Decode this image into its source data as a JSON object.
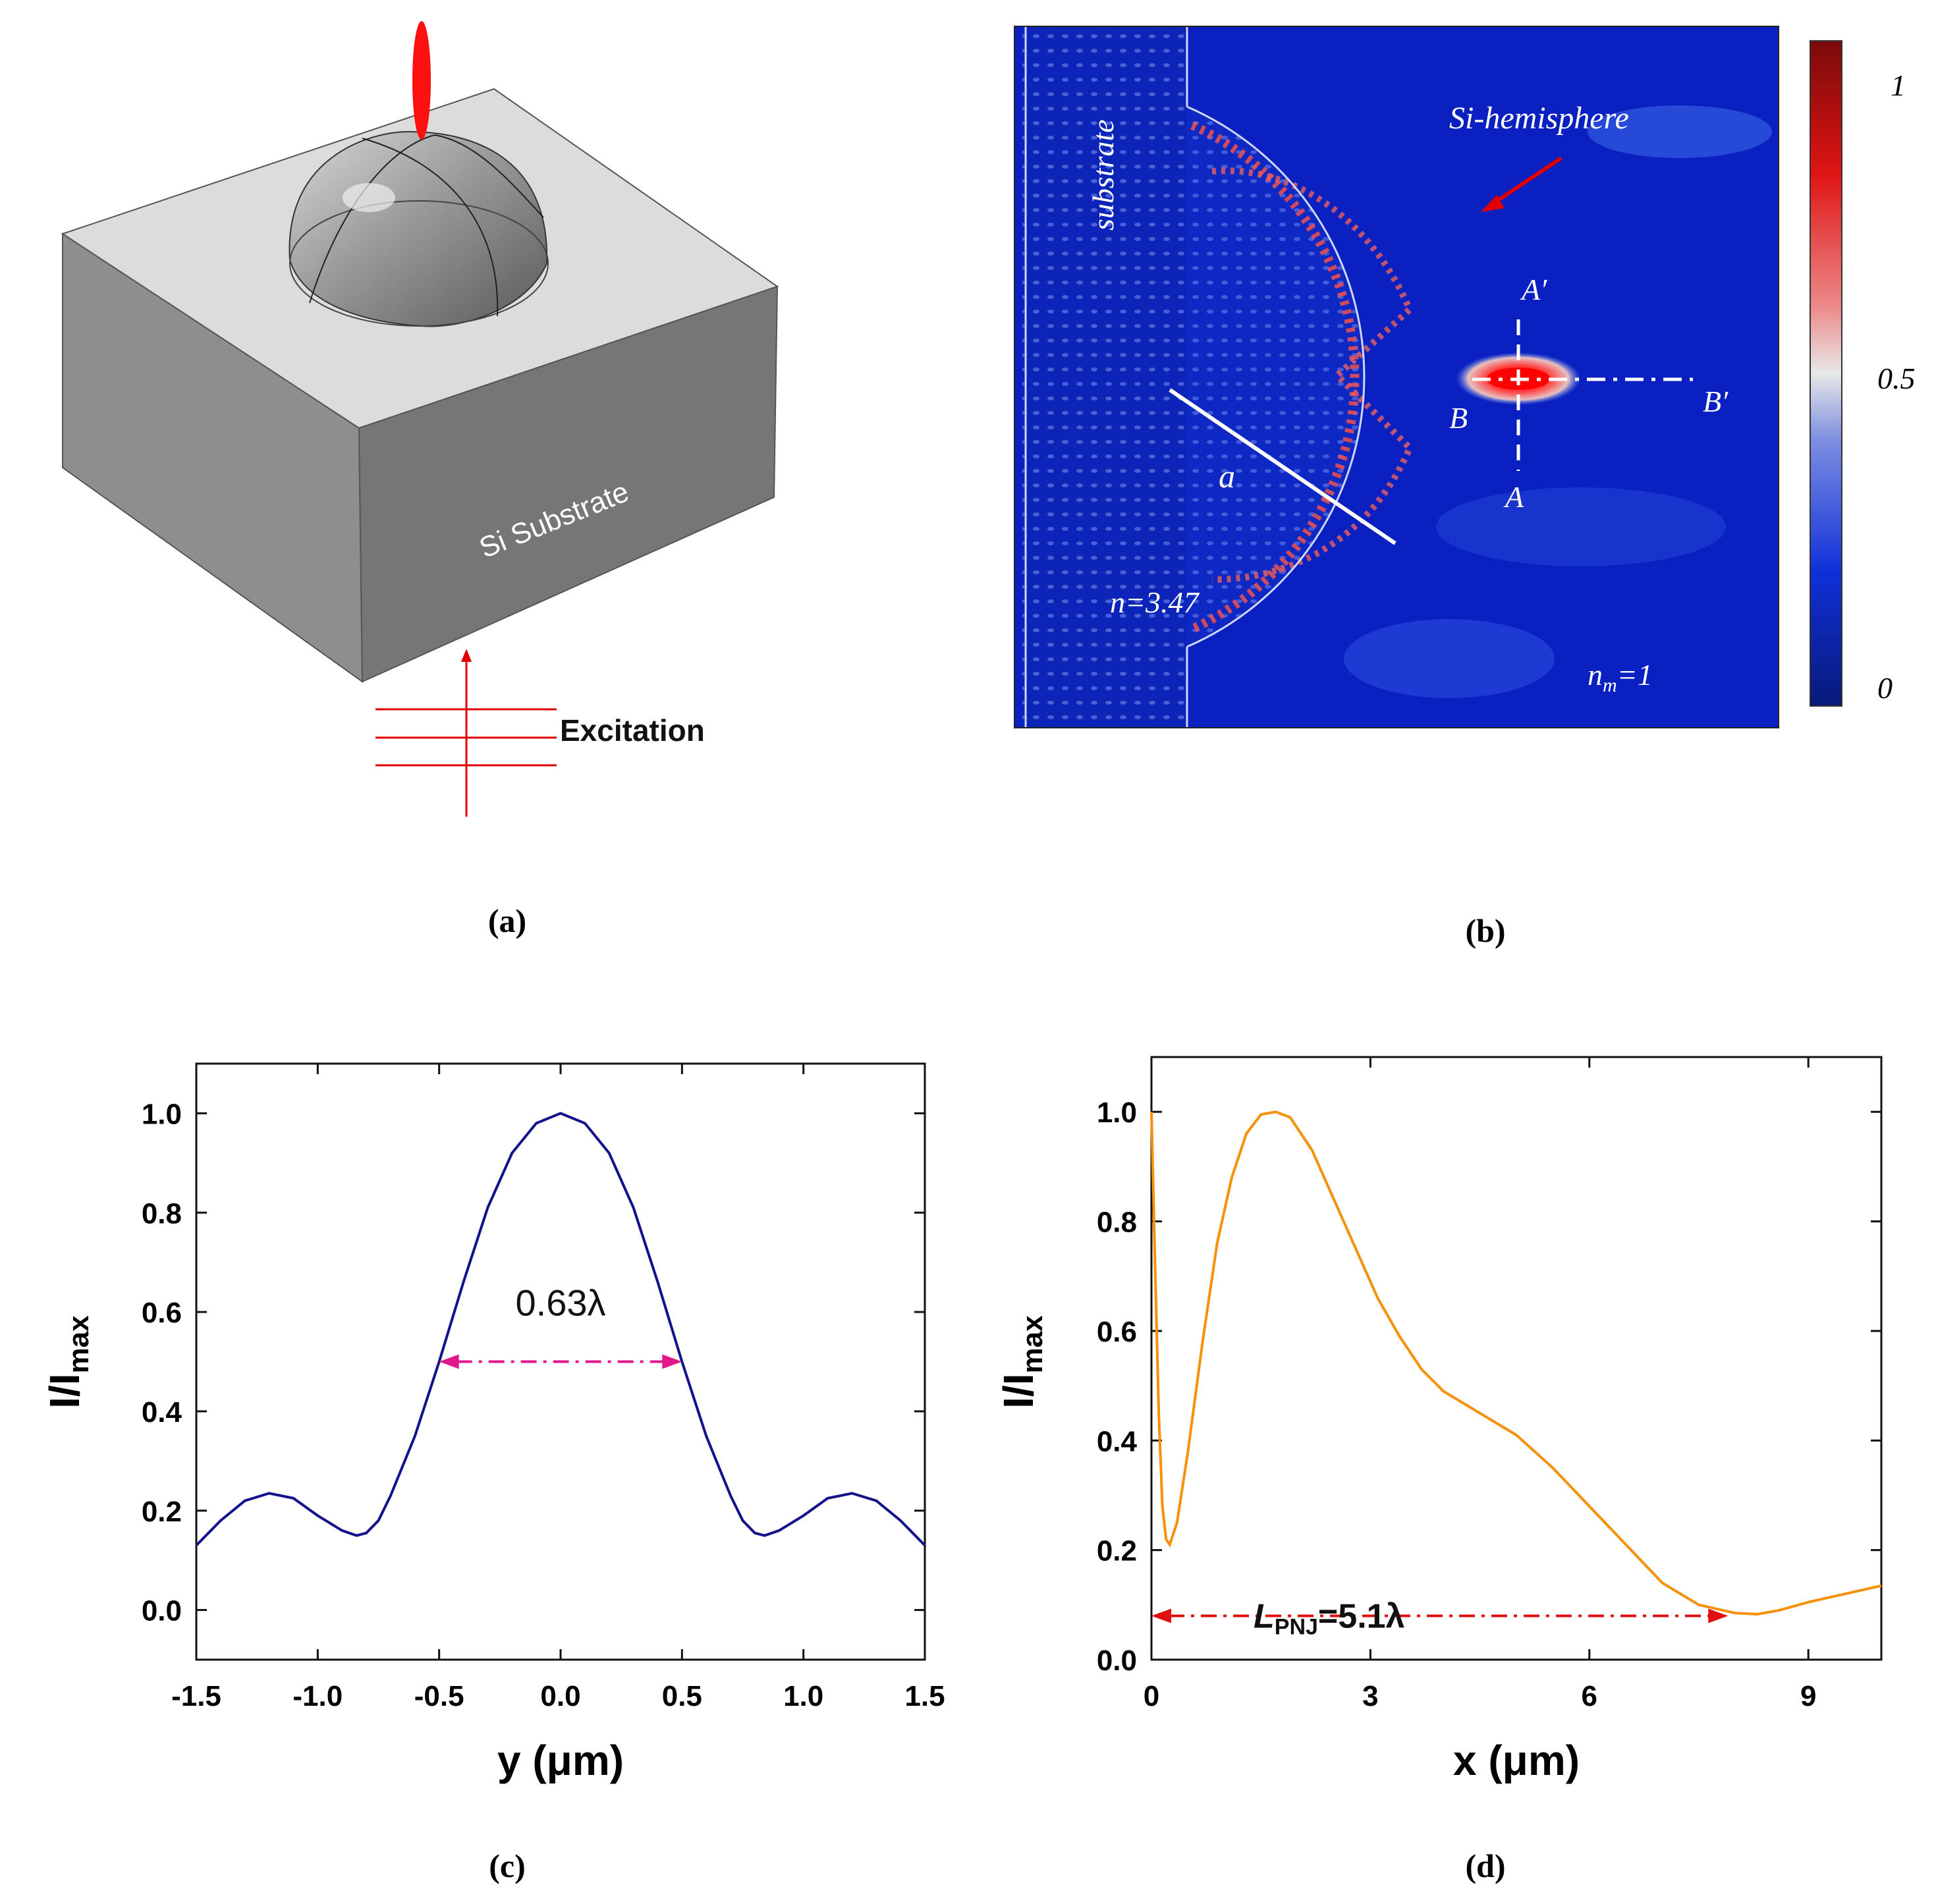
{
  "panel_a": {
    "label": "(a)",
    "substrate_text": "Si Substrate",
    "excitation_text": "Excitation",
    "colors": {
      "top_face": "#dcdcdc",
      "front_face": "#7a7a7a",
      "side_face": "#909090",
      "beam": "#e00000"
    }
  },
  "panel_b": {
    "label": "(b)",
    "substrate_text": "substrate",
    "hemisphere_text": "Si-hemisphere",
    "radius_label": "a",
    "index_label": "n=3.47",
    "medium_label_n": "n",
    "medium_label_sub": "m",
    "medium_label_value": "=1",
    "cut_labels": {
      "A_prime": "A′",
      "A": "A",
      "B": "B",
      "B_prime": "B′"
    },
    "colorbar_ticks": [
      "1",
      "0.5",
      "0"
    ],
    "colors": {
      "field_bg": "#0a1fb8",
      "field_dark": "#00127a",
      "hotspot": "#ff1010",
      "arrow": "#e00000"
    }
  },
  "panel_c": {
    "label": "(c)",
    "fwhm_label": "0.63λ",
    "ylabel_main": "I/I",
    "ylabel_sub": "max",
    "line_color": "#12128c",
    "arrow_color": "#e0188c"
  },
  "panel_d": {
    "label": "(d)",
    "lpnj_label_L": "L",
    "lpnj_label_sub": "PNJ",
    "lpnj_label_value": "=5.1λ",
    "ylabel_main": "I/I",
    "ylabel_sub": "max",
    "line_color": "#f7900a",
    "arrow_color": "#e01010"
  },
  "chart_data": [
    {
      "type": "line",
      "title": "",
      "xlabel": "y (μm)",
      "ylabel": "I/Imax",
      "xlim": [
        -1.5,
        1.5
      ],
      "ylim": [
        -0.1,
        1.1
      ],
      "xticks": [
        "-1.5",
        "-1.0",
        "-0.5",
        "0.0",
        "0.5",
        "1.0",
        "1.5"
      ],
      "yticks": [
        "0.0",
        "0.2",
        "0.4",
        "0.6",
        "0.8",
        "1.0"
      ],
      "x": [
        -1.5,
        -1.4,
        -1.3,
        -1.2,
        -1.1,
        -1.0,
        -0.9,
        -0.84,
        -0.8,
        -0.75,
        -0.7,
        -0.6,
        -0.5,
        -0.4,
        -0.3,
        -0.2,
        -0.1,
        0.0,
        0.1,
        0.2,
        0.3,
        0.4,
        0.5,
        0.6,
        0.7,
        0.75,
        0.8,
        0.84,
        0.9,
        1.0,
        1.1,
        1.2,
        1.3,
        1.4,
        1.5
      ],
      "y": [
        0.13,
        0.18,
        0.22,
        0.235,
        0.225,
        0.19,
        0.16,
        0.15,
        0.155,
        0.18,
        0.23,
        0.35,
        0.5,
        0.66,
        0.81,
        0.92,
        0.98,
        1.0,
        0.98,
        0.92,
        0.81,
        0.66,
        0.5,
        0.35,
        0.23,
        0.18,
        0.155,
        0.15,
        0.16,
        0.19,
        0.225,
        0.235,
        0.22,
        0.18,
        0.13
      ],
      "annotation": {
        "text": "0.63λ",
        "arrow_from": -0.5,
        "arrow_to": 0.5,
        "arrow_y": 0.5
      }
    },
    {
      "type": "line",
      "title": "",
      "xlabel": "x (μm)",
      "ylabel": "I/Imax",
      "xlim": [
        0,
        10
      ],
      "ylim": [
        0.0,
        1.1
      ],
      "xticks": [
        "0",
        "3",
        "6",
        "9"
      ],
      "yticks": [
        "0.0",
        "0.2",
        "0.4",
        "0.6",
        "0.8",
        "1.0"
      ],
      "x": [
        0.0,
        0.05,
        0.1,
        0.15,
        0.2,
        0.25,
        0.35,
        0.5,
        0.7,
        0.9,
        1.1,
        1.3,
        1.5,
        1.7,
        1.9,
        2.2,
        2.5,
        2.8,
        3.1,
        3.4,
        3.7,
        4.0,
        4.5,
        5.0,
        5.5,
        6.0,
        6.5,
        7.0,
        7.5,
        8.0,
        8.3,
        8.6,
        9.0,
        9.5,
        10.0
      ],
      "y": [
        1.0,
        0.72,
        0.45,
        0.28,
        0.22,
        0.21,
        0.25,
        0.38,
        0.58,
        0.76,
        0.88,
        0.96,
        0.995,
        1.0,
        0.99,
        0.93,
        0.84,
        0.75,
        0.66,
        0.59,
        0.53,
        0.49,
        0.45,
        0.41,
        0.35,
        0.28,
        0.21,
        0.14,
        0.1,
        0.085,
        0.083,
        0.09,
        0.105,
        0.12,
        0.135
      ],
      "annotation": {
        "text": "LPNJ=5.1λ",
        "arrow_from": 0.0,
        "arrow_to": 7.9,
        "arrow_y": 0.08
      }
    }
  ]
}
